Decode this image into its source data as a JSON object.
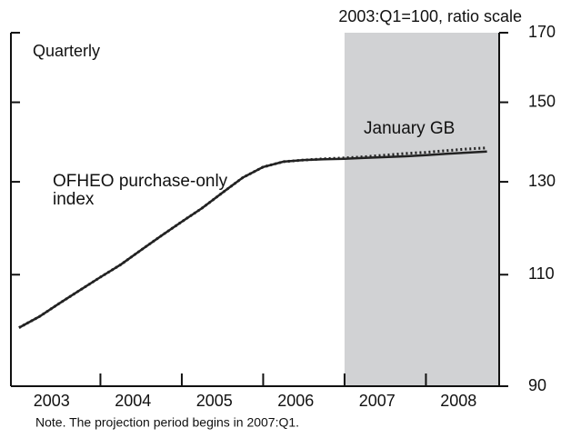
{
  "chart_data": {
    "type": "line",
    "y_label": "2003:Q1=100, ratio scale",
    "subtitle": "Quarterly",
    "note": "Note.  The projection period begins in 2007:Q1.",
    "x": [
      2003,
      2003.25,
      2003.5,
      2003.75,
      2004,
      2004.25,
      2004.5,
      2004.75,
      2005,
      2005.25,
      2005.5,
      2005.75,
      2006,
      2006.25,
      2006.5,
      2006.75,
      2007,
      2007.25,
      2007.5,
      2007.75,
      2008,
      2008.25,
      2008.5,
      2008.75
    ],
    "xlim": [
      2002.9,
      2008.9
    ],
    "xticks": [
      2004,
      2005,
      2006,
      2007,
      2008
    ],
    "year_labels": [
      "2003",
      "2004",
      "2005",
      "2006",
      "2007",
      "2008"
    ],
    "shade_from": 2007,
    "log_scale": true,
    "ylim": [
      90,
      170
    ],
    "yticks": [
      90,
      110,
      130,
      150,
      170
    ],
    "series": [
      {
        "name": "OFHEO purchase-only index",
        "color": "#222222",
        "dash": "solid",
        "values": [
          100,
          102,
          104.5,
          107,
          109.5,
          112,
          115,
          118,
          121,
          124,
          127.5,
          131,
          133.5,
          134.8,
          135.2,
          135.4,
          135.5,
          135.7,
          135.9,
          136.1,
          136.4,
          136.7,
          137,
          137.3
        ]
      },
      {
        "name": "January GB",
        "color": "#222222",
        "dash": "dotted",
        "values": [
          100,
          102,
          104.5,
          107,
          109.5,
          112,
          115,
          118,
          121,
          124,
          127.5,
          131,
          133.5,
          134.8,
          135.2,
          135.5,
          135.7,
          136,
          136.4,
          136.8,
          137.1,
          137.5,
          137.9,
          138.2
        ]
      }
    ]
  }
}
